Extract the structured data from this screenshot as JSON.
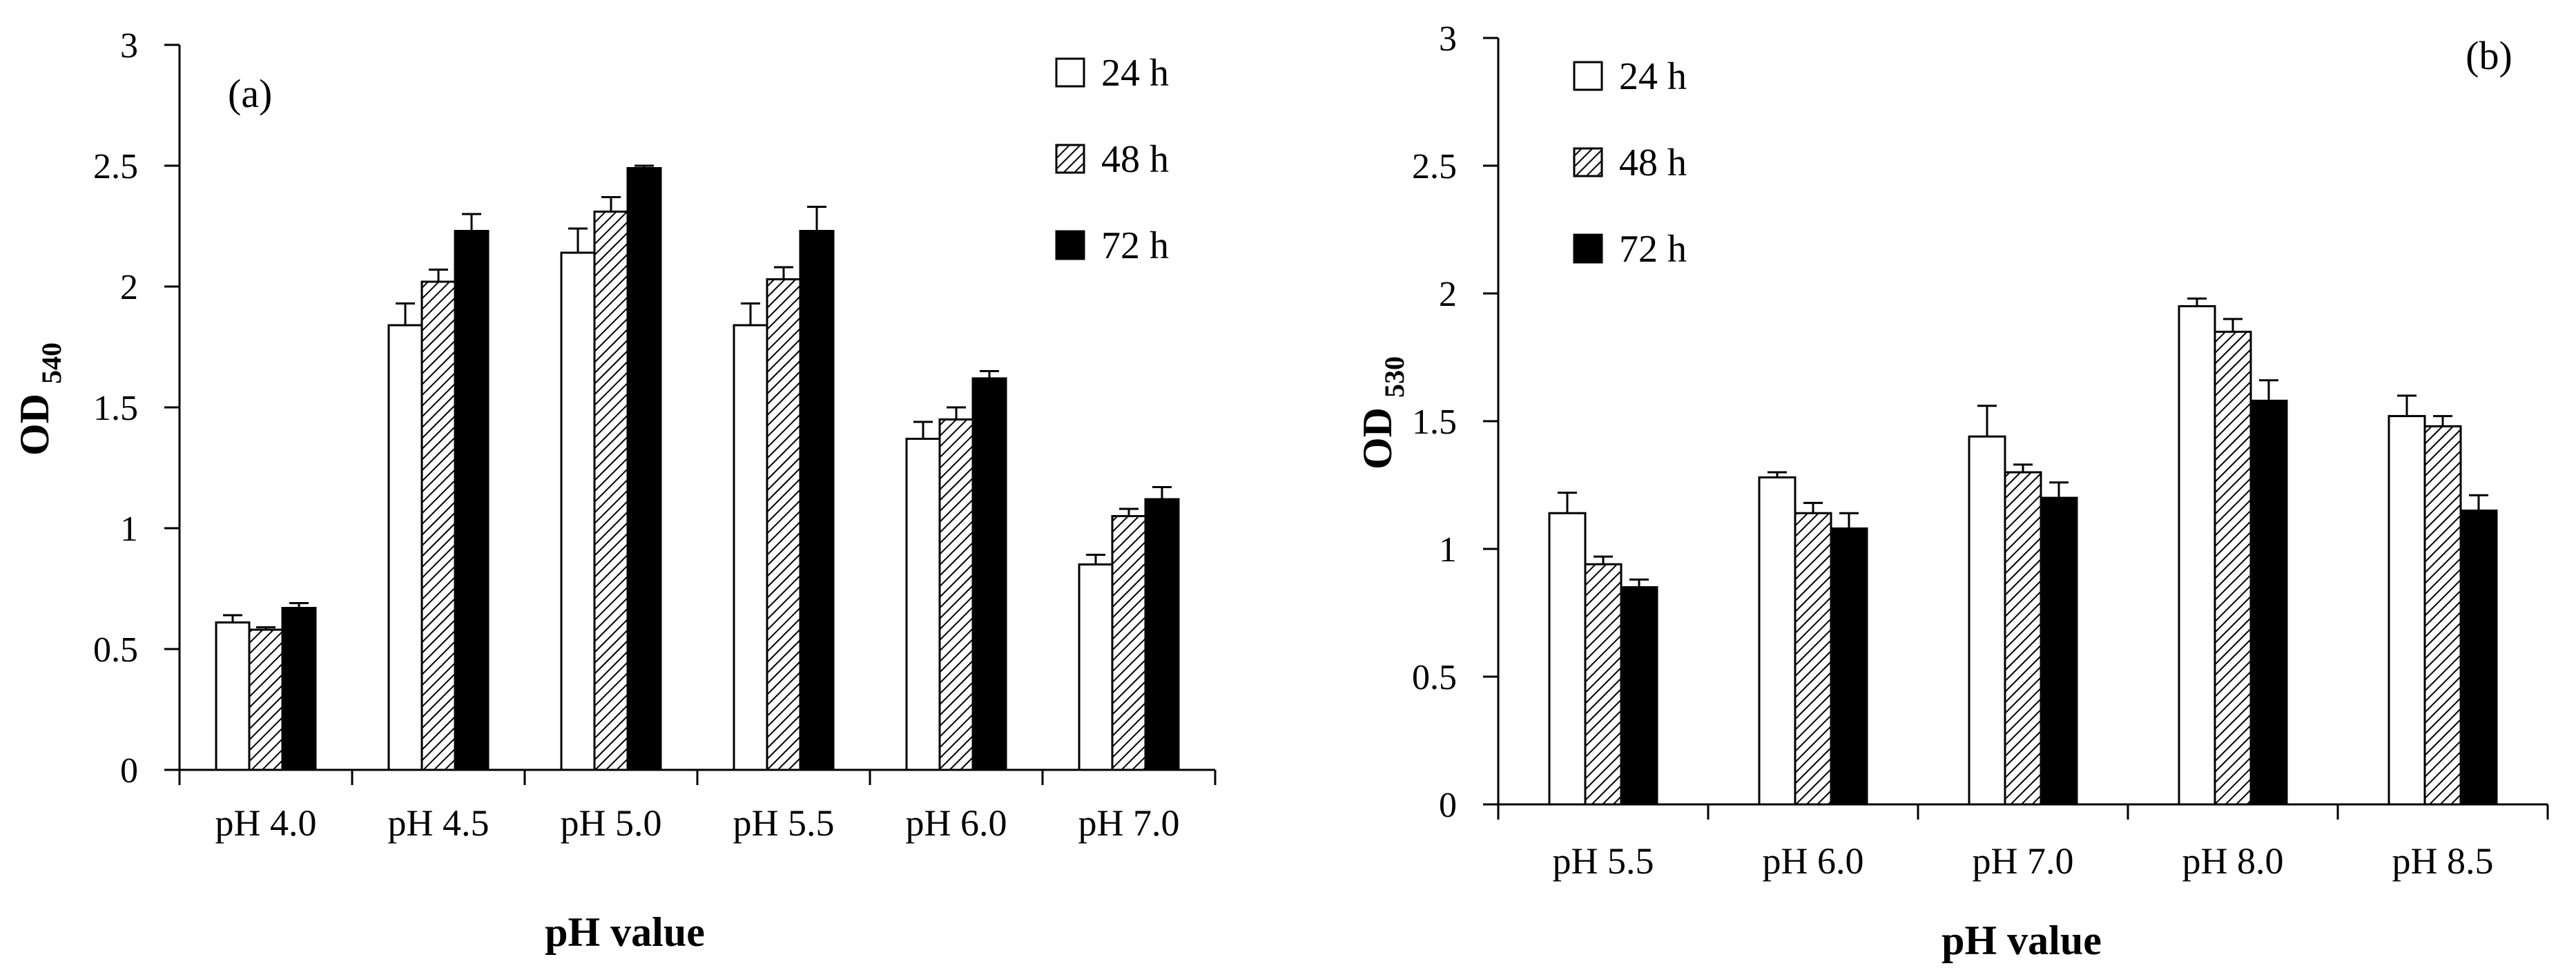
{
  "chart_data": [
    {
      "type": "bar",
      "panel_label": "(a)",
      "title": "",
      "xlabel": "pH value",
      "ylabel": "OD",
      "ylabel_subscript": "540",
      "ylim": [
        0,
        3
      ],
      "yticks": [
        "0",
        "0.5",
        "1",
        "1.5",
        "2",
        "2.5",
        "3"
      ],
      "ytick_values": [
        0,
        0.5,
        1,
        1.5,
        2,
        2.5,
        3
      ],
      "legend_position": "top-right",
      "categories": [
        "pH 4.0",
        "pH 4.5",
        "pH 5.0",
        "pH 5.5",
        "pH 6.0",
        "pH 7.0"
      ],
      "series": [
        {
          "name": "24 h",
          "fill": "white",
          "values": [
            0.61,
            1.84,
            2.14,
            1.84,
            1.37,
            0.85
          ],
          "errors": [
            0.03,
            0.09,
            0.1,
            0.09,
            0.07,
            0.04
          ]
        },
        {
          "name": "48 h",
          "fill": "hatched",
          "values": [
            0.58,
            2.02,
            2.31,
            2.03,
            1.45,
            1.05
          ],
          "errors": [
            0.01,
            0.05,
            0.06,
            0.05,
            0.05,
            0.03
          ]
        },
        {
          "name": "72 h",
          "fill": "black",
          "values": [
            0.67,
            2.23,
            2.49,
            2.23,
            1.62,
            1.12
          ],
          "errors": [
            0.02,
            0.07,
            0.01,
            0.1,
            0.03,
            0.05
          ]
        }
      ]
    },
    {
      "type": "bar",
      "panel_label": "(b)",
      "title": "",
      "xlabel": "pH value",
      "ylabel": "OD",
      "ylabel_subscript": "530",
      "ylim": [
        0,
        3
      ],
      "yticks": [
        "0",
        "0.5",
        "1",
        "1.5",
        "2",
        "2.5",
        "3"
      ],
      "ytick_values": [
        0,
        0.5,
        1,
        1.5,
        2,
        2.5,
        3
      ],
      "legend_position": "top-left",
      "categories": [
        "pH 5.5",
        "pH 6.0",
        "pH 7.0",
        "pH 8.0",
        "pH 8.5"
      ],
      "series": [
        {
          "name": "24 h",
          "fill": "white",
          "values": [
            1.14,
            1.28,
            1.44,
            1.95,
            1.52
          ],
          "errors": [
            0.08,
            0.02,
            0.12,
            0.03,
            0.08
          ]
        },
        {
          "name": "48 h",
          "fill": "hatched",
          "values": [
            0.94,
            1.14,
            1.3,
            1.85,
            1.48
          ],
          "errors": [
            0.03,
            0.04,
            0.03,
            0.05,
            0.04
          ]
        },
        {
          "name": "72 h",
          "fill": "black",
          "values": [
            0.85,
            1.08,
            1.2,
            1.58,
            1.15
          ],
          "errors": [
            0.03,
            0.06,
            0.06,
            0.08,
            0.06
          ]
        }
      ]
    }
  ]
}
